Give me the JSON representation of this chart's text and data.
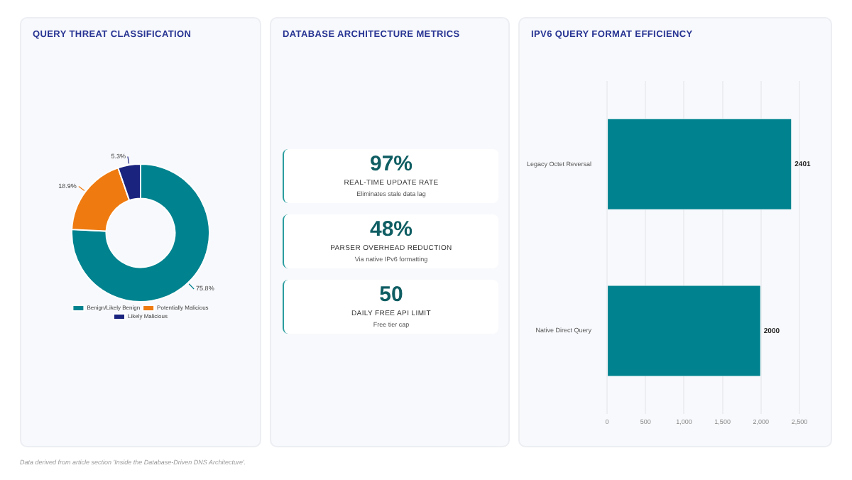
{
  "chart_data": [
    {
      "type": "donut",
      "title": "QUERY THREAT CLASSIFICATION",
      "categories": [
        "Benign/Likely Benign",
        "Potentially Malicious",
        "Likely Malicious"
      ],
      "values": [
        75.8,
        18.9,
        5.3
      ],
      "colors": [
        "#00838f",
        "#ef7b10",
        "#1a237e"
      ],
      "value_labels": [
        "75.8%",
        "18.9%",
        "5.3%"
      ],
      "legend": "bottom"
    },
    {
      "type": "other",
      "title": "DATABASE ARCHITECTURE METRICS",
      "categories": [
        "REAL-TIME UPDATE RATE",
        "PARSER OVERHEAD REDUCTION",
        "DAILY FREE API LIMIT"
      ],
      "value_labels": [
        "97%",
        "48%",
        "50"
      ],
      "annotations": [
        "Eliminates stale data lag",
        "Via native IPv6 formatting",
        "Free tier cap"
      ]
    },
    {
      "type": "bar",
      "orientation": "horizontal",
      "title": "IPV6 QUERY FORMAT EFFICIENCY",
      "categories": [
        "Legacy Octet Reversal",
        "Native Direct Query"
      ],
      "values": [
        2401,
        2000
      ],
      "color": "#00838f",
      "xlim": [
        0,
        2500
      ],
      "xticks": [
        0,
        {
          "value": 500,
          "label": "500"
        },
        {
          "value": 1000,
          "label": "1,000"
        },
        {
          "value": 1500,
          "label": "1,500"
        },
        {
          "value": 2000,
          "label": "2,000"
        },
        {
          "value": 2500,
          "label": "2,500"
        }
      ],
      "grid": "x",
      "data_labels": true,
      "annotations": [
        "Data derived from article section 'Inside the Database-Driven DNS Architecture'."
      ]
    }
  ]
}
